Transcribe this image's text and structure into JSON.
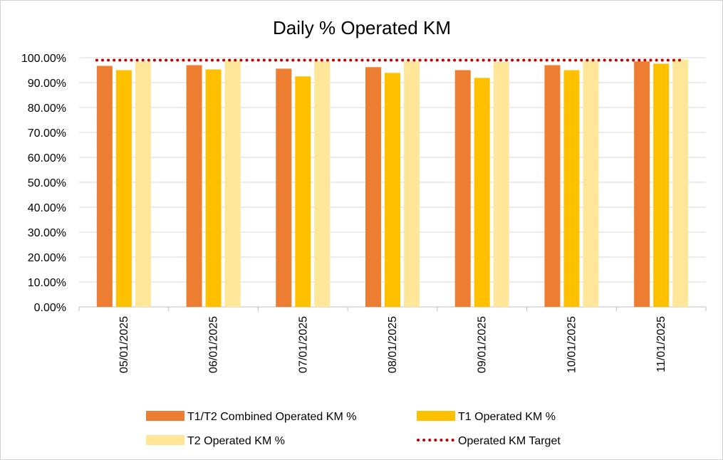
{
  "chart_data": {
    "type": "bar",
    "title": "Daily % Operated KM",
    "xlabel": "",
    "ylabel": "",
    "categories": [
      "05/01/2025",
      "06/01/2025",
      "07/01/2025",
      "08/01/2025",
      "09/01/2025",
      "10/01/2025",
      "11/01/2025"
    ],
    "ylim": [
      0,
      100
    ],
    "ytick_labels": [
      "0.00%",
      "10.00%",
      "20.00%",
      "30.00%",
      "40.00%",
      "50.00%",
      "60.00%",
      "70.00%",
      "80.00%",
      "90.00%",
      "100.00%"
    ],
    "series": [
      {
        "name": "T1/T2 Combined Operated KM %",
        "type": "bar",
        "color": "#ED7D31",
        "values": [
          96.7,
          97.0,
          95.6,
          96.2,
          95.0,
          97.0,
          98.5
        ]
      },
      {
        "name": "T1 Operated KM %",
        "type": "bar",
        "color": "#FFC000",
        "values": [
          95.0,
          95.3,
          92.5,
          93.9,
          91.9,
          95.0,
          97.6
        ]
      },
      {
        "name": "T2 Operated KM %",
        "type": "bar",
        "color": "#FFE699",
        "values": [
          98.4,
          98.8,
          98.6,
          98.5,
          98.3,
          98.8,
          99.3
        ]
      },
      {
        "name": "Operated KM Target",
        "type": "line",
        "style": "dotted",
        "color": "#C00000",
        "values": [
          99,
          99,
          99,
          99,
          99,
          99,
          99
        ]
      }
    ],
    "grid": true,
    "legend_position": "bottom"
  }
}
